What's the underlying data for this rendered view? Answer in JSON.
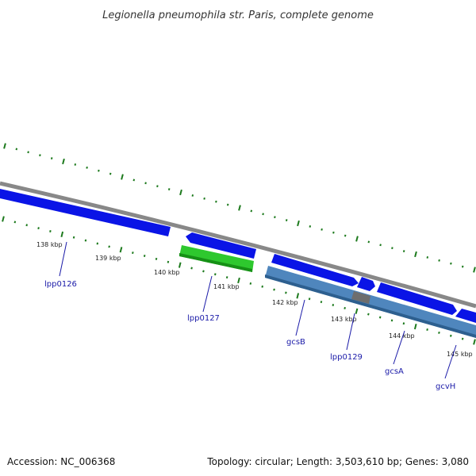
{
  "title": "Legionella pneumophila str. Paris, complete genome",
  "footer": {
    "accession": "Accession: NC_006368",
    "summary": "Topology: circular; Length: 3,503,610 bp; Genes: 3,080"
  },
  "colors": {
    "backbone": "#888888",
    "cds_blue": "#0a14e6",
    "gene_green": "#2ec82e",
    "feature_steel": "#4f86bd",
    "feature_gray": "#6e6e6e",
    "tick_green": "#1d7a1d",
    "label_blue": "#1a1aa8"
  },
  "tick_labels": [
    "138 kbp",
    "139 kbp",
    "140 kbp",
    "141 kbp",
    "142 kbp",
    "143 kbp",
    "144 kbp",
    "145 kbp"
  ],
  "gene_labels": [
    "lpp0126",
    "lpp0127",
    "gcsB",
    "lpp0129",
    "gcsA",
    "gcvH"
  ]
}
